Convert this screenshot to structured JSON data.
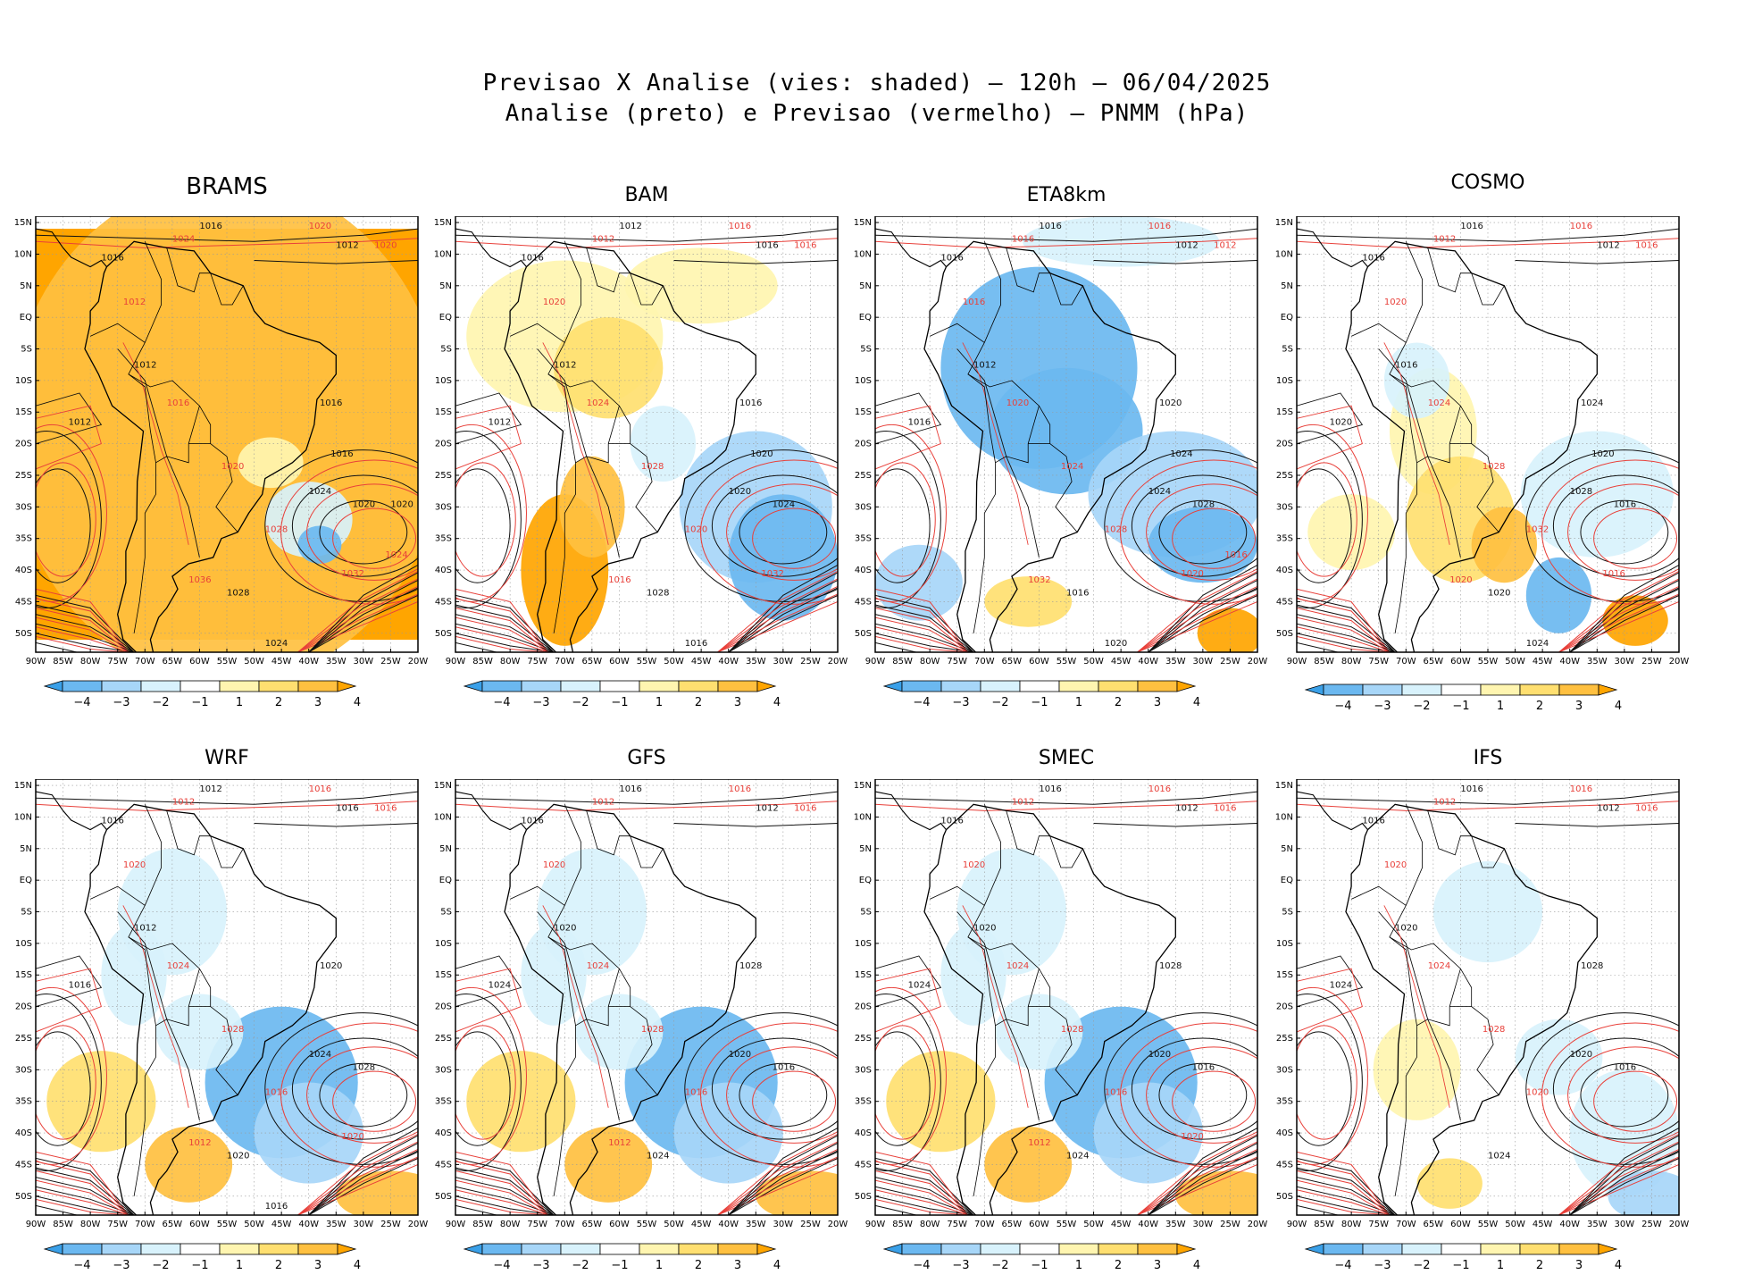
{
  "header": {
    "line1": "Previsao X Analise (vies: shaded) — 120h — 06/04/2025",
    "line2": "Analise (preto) e Previsao (vermelho) — PNMM (hPa)"
  },
  "axes": {
    "lat_labels": [
      "15N",
      "10N",
      "5N",
      "EQ",
      "5S",
      "10S",
      "15S",
      "20S",
      "25S",
      "30S",
      "35S",
      "40S",
      "45S",
      "50S"
    ],
    "lon_labels": [
      "90W",
      "85W",
      "80W",
      "75W",
      "70W",
      "65W",
      "60W",
      "55W",
      "50W",
      "45W",
      "40W",
      "35W",
      "30W",
      "25W",
      "20W"
    ]
  },
  "colorbar": {
    "labels": [
      "−4",
      "−3",
      "−2",
      "−1",
      "1",
      "2",
      "3",
      "4"
    ],
    "colors": [
      "#3aa0e8",
      "#6bb8f0",
      "#a7d6f8",
      "#d8f2fc",
      "#ffffff",
      "#fff5b0",
      "#ffdf70",
      "#ffc040",
      "#ffa500"
    ]
  },
  "contour_colors": {
    "analysis": "#111111",
    "forecast": "#e8403a"
  },
  "panels": [
    {
      "id": "brams",
      "title": "BRAMS",
      "bias": "warm-all",
      "labels_k": [
        "1016",
        "1012",
        "1016",
        "1012",
        "1012",
        "1016",
        "1024",
        "1020",
        "1028",
        "1024",
        "1016",
        "1020"
      ],
      "labels_r": [
        "1020",
        "1024",
        "1020",
        "1012",
        "1016",
        "1020",
        "1028",
        "1036",
        "1032",
        "1024"
      ]
    },
    {
      "id": "bam",
      "title": "BAM",
      "bias": "mixed-warm",
      "labels_k": [
        "1012",
        "1016",
        "1016",
        "1012",
        "1012",
        "1016",
        "1020",
        "1024",
        "1028",
        "1016",
        "1020"
      ],
      "labels_r": [
        "1016",
        "1012",
        "1016",
        "1020",
        "1024",
        "1028",
        "1020",
        "1016",
        "1032"
      ]
    },
    {
      "id": "eta8km",
      "title": "ETA8km",
      "bias": "cold",
      "labels_k": [
        "1016",
        "1012",
        "1016",
        "1012",
        "1016",
        "1020",
        "1024",
        "1028",
        "1016",
        "1020",
        "1024"
      ],
      "labels_r": [
        "1016",
        "1016",
        "1012",
        "1016",
        "1020",
        "1024",
        "1028",
        "1032",
        "1020",
        "1016"
      ]
    },
    {
      "id": "cosmo",
      "title": "COSMO",
      "bias": "mixed",
      "labels_k": [
        "1016",
        "1012",
        "1016",
        "1016",
        "1020",
        "1024",
        "1028",
        "1016",
        "1020",
        "1024",
        "1020"
      ],
      "labels_r": [
        "1016",
        "1012",
        "1016",
        "1020",
        "1024",
        "1028",
        "1032",
        "1020",
        "1016"
      ]
    },
    {
      "id": "wrf",
      "title": "WRF",
      "bias": "cold-south",
      "labels_k": [
        "1012",
        "1016",
        "1016",
        "1012",
        "1016",
        "1020",
        "1024",
        "1028",
        "1020",
        "1016"
      ],
      "labels_r": [
        "1016",
        "1012",
        "1016",
        "1020",
        "1024",
        "1028",
        "1016",
        "1012",
        "1020"
      ]
    },
    {
      "id": "gfs",
      "title": "GFS",
      "bias": "cold-south",
      "labels_k": [
        "1016",
        "1012",
        "1016",
        "1020",
        "1024",
        "1028",
        "1020",
        "1016",
        "1024"
      ],
      "labels_r": [
        "1016",
        "1012",
        "1016",
        "1020",
        "1024",
        "1028",
        "1016",
        "1012"
      ]
    },
    {
      "id": "smec",
      "title": "SMEC",
      "bias": "cold-south",
      "labels_k": [
        "1016",
        "1012",
        "1016",
        "1020",
        "1024",
        "1028",
        "1020",
        "1016",
        "1024"
      ],
      "labels_r": [
        "1016",
        "1012",
        "1016",
        "1020",
        "1024",
        "1028",
        "1016",
        "1012",
        "1020"
      ]
    },
    {
      "id": "ifs",
      "title": "IFS",
      "bias": "mild",
      "labels_k": [
        "1016",
        "1012",
        "1016",
        "1020",
        "1024",
        "1028",
        "1020",
        "1016",
        "1024"
      ],
      "labels_r": [
        "1016",
        "1012",
        "1016",
        "1020",
        "1024",
        "1028",
        "1020"
      ]
    }
  ]
}
